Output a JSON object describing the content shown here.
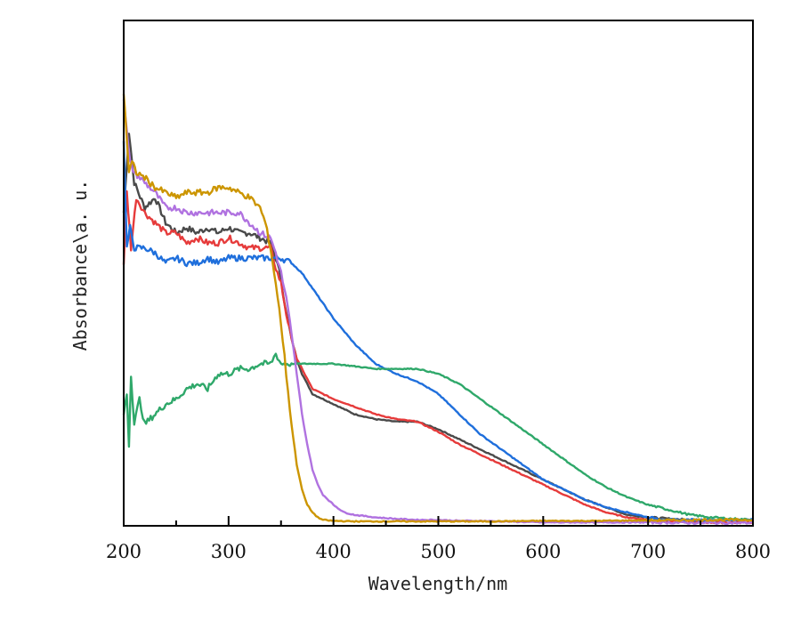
{
  "chart_data": {
    "type": "line",
    "title": "",
    "xlabel": "Wavelength/nm",
    "ylabel": "Absorbance\\a. u.",
    "xlim": [
      200,
      800
    ],
    "ylim": [
      0,
      1
    ],
    "x_ticks": [
      200,
      300,
      400,
      500,
      600,
      700,
      800
    ],
    "x_minor_ticks": [
      250,
      350,
      450,
      550,
      650,
      750
    ],
    "y_ticks": [],
    "grid": false,
    "legend": "none",
    "series": [
      {
        "name": "black",
        "color": "#4a4a4a",
        "x": [
          200,
          205,
          210,
          220,
          230,
          240,
          250,
          260,
          270,
          280,
          290,
          300,
          310,
          320,
          330,
          340,
          345,
          350,
          355,
          360,
          365,
          370,
          375,
          380,
          390,
          400,
          420,
          440,
          460,
          480,
          500,
          520,
          540,
          560,
          580,
          600,
          620,
          640,
          660,
          680,
          700,
          720,
          740,
          760,
          780,
          800
        ],
        "y": [
          0.62,
          0.78,
          0.68,
          0.63,
          0.65,
          0.6,
          0.58,
          0.59,
          0.58,
          0.59,
          0.58,
          0.59,
          0.58,
          0.58,
          0.57,
          0.56,
          0.53,
          0.49,
          0.42,
          0.37,
          0.33,
          0.3,
          0.28,
          0.26,
          0.25,
          0.24,
          0.22,
          0.21,
          0.205,
          0.205,
          0.19,
          0.17,
          0.15,
          0.13,
          0.11,
          0.09,
          0.07,
          0.05,
          0.035,
          0.02,
          0.015,
          0.012,
          0.01,
          0.01,
          0.01,
          0.01
        ]
      },
      {
        "name": "red",
        "color": "#e63b3b",
        "x": [
          200,
          203,
          207,
          212,
          220,
          230,
          240,
          250,
          260,
          270,
          280,
          290,
          300,
          310,
          320,
          330,
          340,
          345,
          350,
          355,
          360,
          365,
          370,
          375,
          380,
          390,
          400,
          420,
          440,
          460,
          480,
          500,
          520,
          540,
          560,
          580,
          600,
          620,
          640,
          660,
          680,
          700,
          720,
          740,
          760,
          780,
          800
        ],
        "y": [
          0.52,
          0.66,
          0.55,
          0.65,
          0.62,
          0.6,
          0.58,
          0.58,
          0.56,
          0.57,
          0.56,
          0.56,
          0.57,
          0.56,
          0.55,
          0.55,
          0.55,
          0.51,
          0.48,
          0.42,
          0.37,
          0.33,
          0.31,
          0.29,
          0.27,
          0.26,
          0.25,
          0.235,
          0.22,
          0.21,
          0.205,
          0.185,
          0.16,
          0.14,
          0.12,
          0.1,
          0.08,
          0.06,
          0.04,
          0.025,
          0.015,
          0.01,
          0.008,
          0.006,
          0.005,
          0.005,
          0.005
        ]
      },
      {
        "name": "blue",
        "color": "#1f6fdc",
        "x": [
          200,
          203,
          206,
          210,
          220,
          230,
          240,
          250,
          260,
          270,
          280,
          290,
          300,
          310,
          320,
          330,
          340,
          350,
          360,
          370,
          380,
          390,
          400,
          420,
          440,
          460,
          480,
          500,
          520,
          540,
          560,
          580,
          600,
          620,
          640,
          660,
          680,
          700,
          720,
          740,
          760,
          780,
          800
        ],
        "y": [
          0.76,
          0.55,
          0.59,
          0.55,
          0.55,
          0.54,
          0.52,
          0.53,
          0.52,
          0.52,
          0.53,
          0.52,
          0.53,
          0.53,
          0.53,
          0.53,
          0.53,
          0.53,
          0.52,
          0.5,
          0.47,
          0.44,
          0.41,
          0.36,
          0.32,
          0.3,
          0.285,
          0.26,
          0.22,
          0.18,
          0.15,
          0.12,
          0.09,
          0.07,
          0.05,
          0.035,
          0.025,
          0.015,
          0.01,
          0.01,
          0.01,
          0.01,
          0.01
        ]
      },
      {
        "name": "green",
        "color": "#2fa86a",
        "x": [
          200,
          203,
          205,
          207,
          210,
          215,
          220,
          230,
          240,
          250,
          260,
          270,
          280,
          290,
          300,
          310,
          320,
          330,
          340,
          345,
          350,
          360,
          370,
          380,
          400,
          420,
          440,
          460,
          480,
          500,
          520,
          540,
          560,
          580,
          600,
          620,
          640,
          660,
          680,
          700,
          720,
          740,
          760,
          780,
          800
        ],
        "y": [
          0.22,
          0.26,
          0.16,
          0.3,
          0.2,
          0.25,
          0.2,
          0.22,
          0.24,
          0.25,
          0.27,
          0.28,
          0.27,
          0.3,
          0.3,
          0.31,
          0.31,
          0.32,
          0.32,
          0.34,
          0.32,
          0.32,
          0.32,
          0.32,
          0.32,
          0.315,
          0.31,
          0.31,
          0.31,
          0.3,
          0.28,
          0.25,
          0.22,
          0.19,
          0.16,
          0.13,
          0.1,
          0.075,
          0.055,
          0.04,
          0.03,
          0.02,
          0.015,
          0.012,
          0.01
        ]
      },
      {
        "name": "purple",
        "color": "#b072e0",
        "x": [
          200,
          203,
          206,
          210,
          220,
          230,
          240,
          250,
          260,
          270,
          280,
          290,
          300,
          310,
          320,
          330,
          340,
          345,
          350,
          355,
          360,
          365,
          370,
          375,
          380,
          385,
          390,
          400,
          410,
          420,
          440,
          460,
          480,
          500,
          520,
          540,
          560,
          580,
          600,
          650,
          700,
          750,
          800
        ],
        "y": [
          0.85,
          0.78,
          0.72,
          0.7,
          0.68,
          0.66,
          0.63,
          0.63,
          0.62,
          0.62,
          0.62,
          0.62,
          0.62,
          0.62,
          0.6,
          0.58,
          0.57,
          0.54,
          0.5,
          0.45,
          0.38,
          0.3,
          0.22,
          0.16,
          0.11,
          0.08,
          0.06,
          0.04,
          0.025,
          0.02,
          0.015,
          0.012,
          0.01,
          0.01,
          0.008,
          0.008,
          0.007,
          0.006,
          0.005,
          0.005,
          0.005,
          0.004,
          0.004
        ]
      },
      {
        "name": "gold",
        "color": "#cc9500",
        "x": [
          200,
          202,
          205,
          208,
          212,
          220,
          230,
          240,
          250,
          260,
          270,
          280,
          290,
          300,
          310,
          320,
          330,
          335,
          340,
          345,
          350,
          355,
          360,
          365,
          370,
          375,
          380,
          385,
          390,
          400,
          420,
          440,
          460,
          480,
          500,
          550,
          600,
          650,
          700,
          750,
          800
        ],
        "y": [
          0.86,
          0.8,
          0.7,
          0.72,
          0.7,
          0.69,
          0.67,
          0.66,
          0.65,
          0.66,
          0.66,
          0.66,
          0.67,
          0.67,
          0.66,
          0.65,
          0.63,
          0.6,
          0.55,
          0.48,
          0.4,
          0.3,
          0.2,
          0.12,
          0.07,
          0.04,
          0.025,
          0.015,
          0.01,
          0.008,
          0.007,
          0.007,
          0.007,
          0.007,
          0.007,
          0.007,
          0.008,
          0.008,
          0.009,
          0.01,
          0.01
        ]
      }
    ]
  }
}
